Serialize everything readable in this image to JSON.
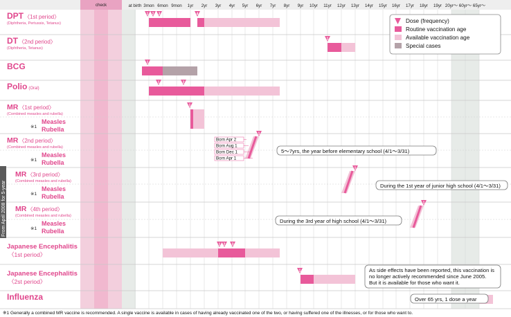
{
  "colors": {
    "routine": "#e85a9b",
    "available": "#f3c3d7",
    "special": "#b4a2a8",
    "label": "#e0468c",
    "check_fill": "#f3cfdd",
    "check_dark": "#f1b8cf",
    "grey_band": "#e7ebe8"
  },
  "header": {
    "check_label": "check",
    "ticks": [
      "at birth",
      "3mon",
      "6mon",
      "9mon",
      "1yr",
      "2yr",
      "3yr",
      "4yr",
      "5yr",
      "6yr",
      "7yr",
      "8yr",
      "9yr",
      "10yr",
      "11yr",
      "12yr",
      "13yr",
      "14yr",
      "15yr",
      "16yr",
      "17yr",
      "18yr",
      "19yr",
      "20yr〜",
      "60yr〜",
      "65yr〜"
    ]
  },
  "vertical_note": "From April 2008 for 5-year",
  "legend": {
    "dose": "Dose (frequency)",
    "routine": "Routine vaccination age",
    "available": "Available vaccination age",
    "special": "Special cases"
  },
  "rows": [
    {
      "id": "dpt",
      "title": "DPT",
      "period": "〈1st period〉",
      "sub": "(Diphtheria, Pertussis, Tetanus)"
    },
    {
      "id": "dt",
      "title": "DT",
      "period": "〈2nd period〉",
      "sub": "(Diphtheria, Tetanus)"
    },
    {
      "id": "bcg",
      "title": "BCG",
      "period": "",
      "sub": ""
    },
    {
      "id": "polio",
      "title": "Polio",
      "period": "",
      "sub": "(Oral)"
    },
    {
      "id": "mr1",
      "title": "MR",
      "period": "〈1st period〉",
      "sub": "(Combined measles and rubella)",
      "alt_mark": "※1",
      "alt1": "Measles",
      "alt2": "Rubella"
    },
    {
      "id": "mr2",
      "title": "MR",
      "period": "〈2nd period〉",
      "sub": "(Combined measles and rubella)",
      "alt_mark": "※1",
      "alt1": "Measles",
      "alt2": "Rubella"
    },
    {
      "id": "mr3",
      "title": "MR",
      "period": "〈3rd period〉",
      "sub": "(Combined measles and rubella)",
      "alt_mark": "※1",
      "alt1": "Measles",
      "alt2": "Rubella"
    },
    {
      "id": "mr4",
      "title": "MR",
      "period": "〈4th period〉",
      "sub": "(Combined measles and rubella)",
      "alt_mark": "※1",
      "alt1": "Measles",
      "alt2": "Rubella"
    },
    {
      "id": "je1",
      "title": "Japanese Encephalitis",
      "period": "〈1st period〉",
      "sub": ""
    },
    {
      "id": "je2",
      "title": "Japanese Encephalitis",
      "period": "〈2st period〉",
      "sub": ""
    },
    {
      "id": "flu",
      "title": "Influenza",
      "period": "",
      "sub": ""
    }
  ],
  "born_labels": [
    "Born Apr 2",
    "Born Aug 1",
    "Born Dec 1",
    "Born Apr 1"
  ],
  "callouts": {
    "mr2": "5〜7yrs, the year before elementary school (4/1〜3/31)",
    "mr3": "During the 1st year of junior high school (4/1〜3/31)",
    "mr4": "During the 3rd year of high school (4/1〜3/31)",
    "je2": [
      "As side effects have been reported, this vaccination is",
      "no longer actively recommended since June 2005.",
      "But it is available for those who want it."
    ],
    "flu": "Over 65 yrs, 1 dose a year"
  },
  "footnote": "※1  Generally a combined MR vaccine is recommended. A single vaccine is available in cases of having already vaccinated one of the two, or having suffered one of the illnesses, or for those who want to.",
  "chart_data": {
    "type": "bar",
    "x_categories": [
      "at birth",
      "3mon",
      "6mon",
      "9mon",
      "1yr",
      "2yr",
      "3yr",
      "4yr",
      "5yr",
      "6yr",
      "7yr",
      "8yr",
      "9yr",
      "10yr",
      "11yr",
      "12yr",
      "13yr",
      "14yr",
      "15yr",
      "16yr",
      "17yr",
      "18yr",
      "19yr",
      "20yr〜",
      "60yr〜",
      "65yr〜"
    ],
    "series": [
      {
        "name": "Routine vaccination age"
      },
      {
        "name": "Available vaccination age"
      },
      {
        "name": "Special cases"
      }
    ],
    "vaccines": [
      {
        "id": "dpt",
        "routine": [
          [
            "3mon",
            "1yr"
          ],
          [
            "1yr+0.5",
            "2yr"
          ]
        ],
        "available": [
          [
            "2yr",
            "7yr+0.5"
          ]
        ],
        "doses": [
          "1",
          "2",
          "3",
          "4"
        ]
      },
      {
        "id": "dt",
        "routine": [
          [
            "11yr",
            "12yr"
          ]
        ],
        "available": [
          [
            "12yr",
            "13yr"
          ]
        ],
        "doses": [
          "1"
        ]
      },
      {
        "id": "bcg",
        "routine": [
          [
            "at birth+0.5",
            "6mon"
          ]
        ],
        "special": [
          [
            "6mon",
            "1yr+0.5"
          ]
        ],
        "doses": [
          "1"
        ]
      },
      {
        "id": "polio",
        "routine": [
          [
            "3mon",
            "2yr"
          ]
        ],
        "available": [
          [
            "2yr",
            "7yr+0.5"
          ]
        ],
        "doses": [
          "1",
          "2"
        ]
      },
      {
        "id": "mr1",
        "routine": [
          [
            "1yr",
            "1yr+0.2"
          ]
        ],
        "available": [
          [
            "1yr+0.2",
            "2yr"
          ]
        ],
        "doses": [
          "1"
        ]
      },
      {
        "id": "mr2",
        "routine": [
          [
            "5yr",
            "6yr"
          ]
        ],
        "doses": [
          "1"
        ]
      },
      {
        "id": "mr3",
        "routine": [
          [
            "12yr",
            "13yr"
          ]
        ],
        "doses": [
          "1"
        ]
      },
      {
        "id": "mr4",
        "routine": [
          [
            "17yr",
            "18yr"
          ]
        ],
        "doses": [
          "1"
        ]
      },
      {
        "id": "je1",
        "routine": [
          [
            "3yr",
            "5yr"
          ]
        ],
        "available": [
          [
            "6mon",
            "7yr+0.5"
          ]
        ],
        "doses": [
          "1",
          "2",
          "3"
        ]
      },
      {
        "id": "je2",
        "routine": [
          [
            "9yr",
            "10yr"
          ]
        ],
        "available": [
          [
            "10yr",
            "13yr"
          ]
        ],
        "doses": [
          "1"
        ]
      },
      {
        "id": "flu",
        "available": [
          [
            "65yr〜",
            "65yr〜+1"
          ]
        ]
      }
    ]
  }
}
